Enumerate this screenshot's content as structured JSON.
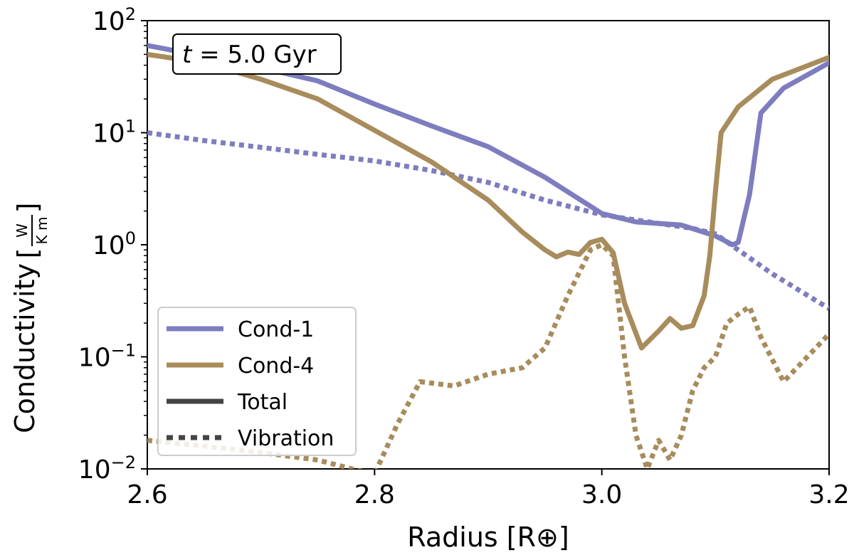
{
  "chart_data": {
    "type": "line",
    "title": "",
    "annotation": {
      "var": "t",
      "text": " = 5.0 Gyr"
    },
    "xlabel": "Radius [R⊕]",
    "ylabel": {
      "text": "Conductivity",
      "unit_numerator": "W",
      "unit_denominator": "K m"
    },
    "xlim": [
      2.6,
      3.2
    ],
    "ylim_log10": [
      -2,
      2
    ],
    "yscale": "log",
    "x_ticks": [
      {
        "value": 2.6,
        "label": "2.6"
      },
      {
        "value": 2.8,
        "label": "2.8"
      },
      {
        "value": 3.0,
        "label": "3.0"
      },
      {
        "value": 3.2,
        "label": "3.2"
      }
    ],
    "y_ticks": [
      {
        "exp": 2,
        "base": "10",
        "sup": "2"
      },
      {
        "exp": 1,
        "base": "10",
        "sup": "1"
      },
      {
        "exp": 0,
        "base": "10",
        "sup": "0"
      },
      {
        "exp": -1,
        "base": "10",
        "sup": "−1"
      },
      {
        "exp": -2,
        "base": "10",
        "sup": "−2"
      }
    ],
    "grid": false,
    "legend": {
      "position": "lower-left",
      "entries": [
        {
          "label": "Cond-1",
          "color": "#7d7dbf",
          "style": "solid"
        },
        {
          "label": "Cond-4",
          "color": "#a88c5c",
          "style": "solid"
        },
        {
          "label": "Total",
          "color": "#444444",
          "style": "solid"
        },
        {
          "label": "Vibration",
          "color": "#444444",
          "style": "dotted"
        }
      ]
    },
    "series": [
      {
        "name": "Cond-1 Total",
        "color": "#7d7dbf",
        "style": "solid",
        "x": [
          2.6,
          2.65,
          2.7,
          2.75,
          2.8,
          2.85,
          2.9,
          2.95,
          3.0,
          3.03,
          3.07,
          3.1,
          3.115,
          3.12,
          3.13,
          3.14,
          3.16,
          3.2
        ],
        "y": [
          60,
          48,
          38,
          29,
          18,
          11.5,
          7.5,
          4.0,
          1.9,
          1.6,
          1.5,
          1.2,
          1.0,
          1.05,
          2.8,
          15,
          25,
          42
        ]
      },
      {
        "name": "Cond-1 Vibration",
        "color": "#7d7dbf",
        "style": "dotted",
        "x": [
          2.6,
          2.65,
          2.7,
          2.75,
          2.8,
          2.85,
          2.9,
          2.95,
          3.0,
          3.05,
          3.08,
          3.1,
          3.15,
          3.2
        ],
        "y": [
          10,
          8.5,
          7.4,
          6.4,
          5.6,
          4.6,
          3.6,
          2.5,
          1.85,
          1.55,
          1.4,
          1.25,
          0.55,
          0.27
        ]
      },
      {
        "name": "Cond-4 Total",
        "color": "#a88c5c",
        "style": "solid",
        "x": [
          2.6,
          2.65,
          2.7,
          2.75,
          2.8,
          2.85,
          2.9,
          2.93,
          2.95,
          2.96,
          2.97,
          2.98,
          2.99,
          3.0,
          3.01,
          3.02,
          3.035,
          3.05,
          3.06,
          3.07,
          3.08,
          3.09,
          3.095,
          3.1,
          3.105,
          3.12,
          3.15,
          3.2
        ],
        "y": [
          50,
          42,
          30,
          20,
          10.5,
          5.5,
          2.5,
          1.3,
          0.9,
          0.78,
          0.86,
          0.82,
          1.05,
          1.12,
          0.85,
          0.3,
          0.12,
          0.17,
          0.22,
          0.18,
          0.19,
          0.35,
          0.8,
          3.0,
          10,
          17,
          30,
          47
        ]
      },
      {
        "name": "Cond-4 Vibration",
        "color": "#a88c5c",
        "style": "dotted",
        "x": [
          2.6,
          2.65,
          2.7,
          2.75,
          2.78,
          2.8,
          2.82,
          2.84,
          2.87,
          2.9,
          2.93,
          2.95,
          2.97,
          2.99,
          3.0,
          3.01,
          3.02,
          3.03,
          3.04,
          3.05,
          3.06,
          3.07,
          3.08,
          3.09,
          3.1,
          3.11,
          3.12,
          3.13,
          3.14,
          3.16,
          3.2
        ],
        "y": [
          0.018,
          0.016,
          0.014,
          0.012,
          0.01,
          0.009,
          0.025,
          0.06,
          0.055,
          0.07,
          0.08,
          0.12,
          0.35,
          0.9,
          1.0,
          0.8,
          0.1,
          0.02,
          0.01,
          0.018,
          0.012,
          0.02,
          0.05,
          0.08,
          0.1,
          0.2,
          0.24,
          0.28,
          0.15,
          0.06,
          0.16
        ]
      }
    ]
  }
}
